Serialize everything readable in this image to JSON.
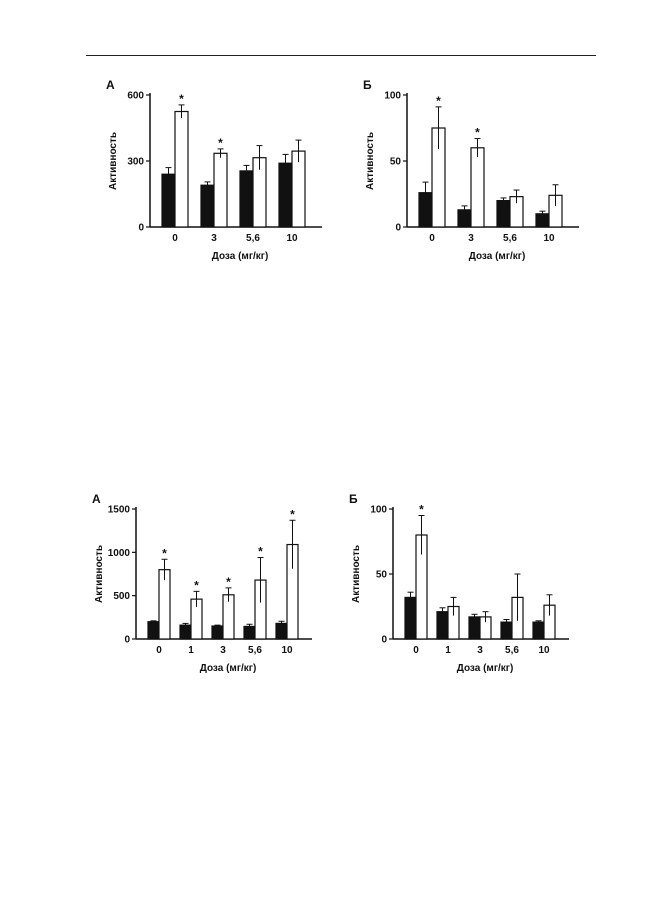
{
  "chart_data": [
    {
      "type": "bar",
      "panel_label": "А",
      "xlabel": "Доза (мг/кг)",
      "ylabel": "Активность",
      "ylim": [
        0,
        600
      ],
      "yticks": [
        "0",
        "300",
        "600"
      ],
      "categories": [
        "0",
        "3",
        "5,6",
        "10"
      ],
      "series": [
        {
          "fill": "#111111",
          "values": [
            240,
            190,
            255,
            290
          ],
          "errors": [
            30,
            15,
            25,
            40
          ],
          "stars": [
            false,
            false,
            false,
            false
          ]
        },
        {
          "fill": "#ffffff",
          "values": [
            525,
            335,
            315,
            345
          ],
          "errors": [
            30,
            20,
            55,
            50
          ],
          "stars": [
            true,
            true,
            false,
            false
          ]
        }
      ]
    },
    {
      "type": "bar",
      "panel_label": "Б",
      "xlabel": "Доза (мг/кг)",
      "ylabel": "Активность",
      "ylim": [
        0,
        100
      ],
      "yticks": [
        "0",
        "50",
        "100"
      ],
      "categories": [
        "0",
        "3",
        "5,6",
        "10"
      ],
      "series": [
        {
          "fill": "#111111",
          "values": [
            26,
            13,
            20,
            10
          ],
          "errors": [
            8,
            3,
            2,
            2
          ],
          "stars": [
            false,
            false,
            false,
            false
          ]
        },
        {
          "fill": "#ffffff",
          "values": [
            75,
            60,
            23,
            24
          ],
          "errors": [
            16,
            7,
            5,
            8
          ],
          "stars": [
            true,
            true,
            false,
            false
          ]
        }
      ]
    },
    {
      "type": "bar",
      "panel_label": "А",
      "xlabel": "Доза (мг/кг)",
      "ylabel": "Активность",
      "ylim": [
        0,
        1500
      ],
      "yticks": [
        "0",
        "500",
        "1000",
        "1500"
      ],
      "categories": [
        "0",
        "1",
        "3",
        "5,6",
        "10"
      ],
      "series": [
        {
          "fill": "#111111",
          "values": [
            200,
            160,
            150,
            145,
            180
          ],
          "errors": [
            10,
            20,
            10,
            25,
            25
          ],
          "stars": [
            false,
            false,
            false,
            false,
            false
          ]
        },
        {
          "fill": "#ffffff",
          "values": [
            800,
            460,
            510,
            680,
            1090
          ],
          "errors": [
            120,
            90,
            80,
            260,
            280
          ],
          "stars": [
            true,
            true,
            true,
            true,
            true
          ]
        }
      ]
    },
    {
      "type": "bar",
      "panel_label": "Б",
      "xlabel": "Доза (мг/кг)",
      "ylabel": "Активность",
      "ylim": [
        0,
        100
      ],
      "yticks": [
        "0",
        "50",
        "100"
      ],
      "categories": [
        "0",
        "1",
        "3",
        "5,6",
        "10"
      ],
      "series": [
        {
          "fill": "#111111",
          "values": [
            32,
            21,
            17,
            13,
            13
          ],
          "errors": [
            4,
            3,
            2,
            2,
            1
          ],
          "stars": [
            false,
            false,
            false,
            false,
            false
          ]
        },
        {
          "fill": "#ffffff",
          "values": [
            80,
            25,
            17,
            32,
            26
          ],
          "errors": [
            15,
            7,
            4,
            18,
            8
          ],
          "stars": [
            true,
            false,
            false,
            false,
            false
          ]
        }
      ]
    }
  ]
}
